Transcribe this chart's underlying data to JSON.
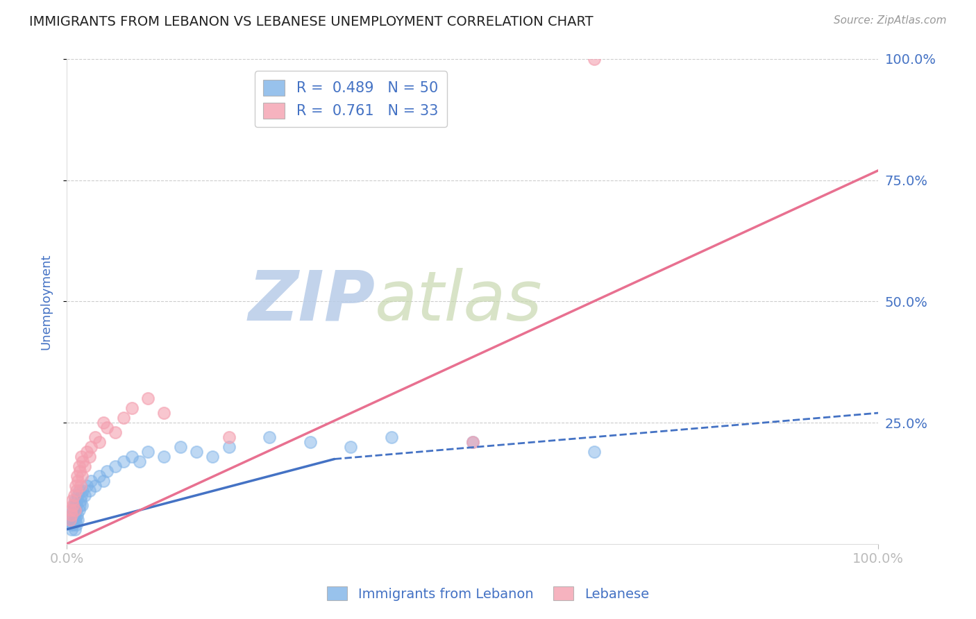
{
  "title": "IMMIGRANTS FROM LEBANON VS LEBANESE UNEMPLOYMENT CORRELATION CHART",
  "source_text": "Source: ZipAtlas.com",
  "ylabel": "Unemployment",
  "xlim": [
    0.0,
    1.0
  ],
  "ylim": [
    0.0,
    1.0
  ],
  "ytick_labels": [
    "25.0%",
    "50.0%",
    "75.0%",
    "100.0%"
  ],
  "ytick_values": [
    0.25,
    0.5,
    0.75,
    1.0
  ],
  "xtick_labels": [
    "0.0%",
    "100.0%"
  ],
  "xtick_values": [
    0.0,
    1.0
  ],
  "watermark": "ZIPatlas",
  "legend_label_blue": "R =  0.489   N = 50",
  "legend_label_pink": "R =  0.761   N = 33",
  "blue_scatter_x": [
    0.005,
    0.006,
    0.007,
    0.007,
    0.008,
    0.008,
    0.009,
    0.009,
    0.01,
    0.01,
    0.01,
    0.011,
    0.011,
    0.012,
    0.012,
    0.013,
    0.013,
    0.014,
    0.014,
    0.015,
    0.015,
    0.016,
    0.017,
    0.018,
    0.019,
    0.02,
    0.022,
    0.025,
    0.028,
    0.03,
    0.035,
    0.04,
    0.045,
    0.05,
    0.06,
    0.07,
    0.08,
    0.09,
    0.1,
    0.12,
    0.14,
    0.16,
    0.18,
    0.2,
    0.25,
    0.3,
    0.35,
    0.4,
    0.5,
    0.65
  ],
  "blue_scatter_y": [
    0.04,
    0.03,
    0.05,
    0.06,
    0.04,
    0.07,
    0.05,
    0.08,
    0.03,
    0.06,
    0.09,
    0.05,
    0.07,
    0.04,
    0.08,
    0.06,
    0.09,
    0.05,
    0.1,
    0.07,
    0.11,
    0.08,
    0.09,
    0.1,
    0.08,
    0.11,
    0.1,
    0.12,
    0.11,
    0.13,
    0.12,
    0.14,
    0.13,
    0.15,
    0.16,
    0.17,
    0.18,
    0.17,
    0.19,
    0.18,
    0.2,
    0.19,
    0.18,
    0.2,
    0.22,
    0.21,
    0.2,
    0.22,
    0.21,
    0.19
  ],
  "pink_scatter_x": [
    0.004,
    0.005,
    0.006,
    0.007,
    0.008,
    0.009,
    0.01,
    0.011,
    0.012,
    0.013,
    0.014,
    0.015,
    0.016,
    0.017,
    0.018,
    0.019,
    0.02,
    0.022,
    0.025,
    0.028,
    0.03,
    0.035,
    0.04,
    0.045,
    0.05,
    0.06,
    0.07,
    0.08,
    0.1,
    0.12,
    0.2,
    0.5,
    0.65
  ],
  "pink_scatter_y": [
    0.05,
    0.07,
    0.06,
    0.09,
    0.08,
    0.1,
    0.07,
    0.12,
    0.11,
    0.14,
    0.13,
    0.16,
    0.15,
    0.12,
    0.18,
    0.14,
    0.17,
    0.16,
    0.19,
    0.18,
    0.2,
    0.22,
    0.21,
    0.25,
    0.24,
    0.23,
    0.26,
    0.28,
    0.3,
    0.27,
    0.22,
    0.21,
    1.0
  ],
  "blue_line_x0": 0.0,
  "blue_line_x_solid_end": 0.33,
  "blue_line_x1": 1.0,
  "blue_line_y0": 0.03,
  "blue_line_y_solid_end": 0.175,
  "blue_line_y1": 0.27,
  "pink_line_x0": 0.0,
  "pink_line_x1": 1.0,
  "pink_line_y0": 0.0,
  "pink_line_y1": 0.77,
  "blue_line_color": "#4472c4",
  "pink_line_color": "#e87090",
  "blue_marker_color": "#7fb3e8",
  "pink_marker_color": "#f4a0b0",
  "background_color": "#ffffff",
  "grid_color": "#cccccc",
  "title_color": "#222222",
  "tick_label_color": "#4472c4",
  "watermark_color": "#ccd8f0"
}
